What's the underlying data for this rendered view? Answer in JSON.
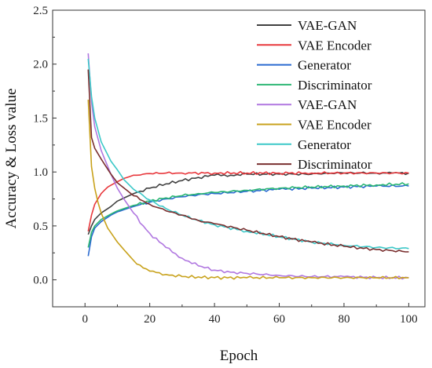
{
  "chart_data": {
    "type": "line",
    "title": "",
    "xlabel": "Epoch",
    "ylabel": "Accuracy & Loss value",
    "xlim": [
      -10,
      105
    ],
    "ylim": [
      -0.25,
      2.5
    ],
    "x_ticks": [
      0,
      20,
      40,
      60,
      80,
      100
    ],
    "y_ticks": [
      0.0,
      0.5,
      1.0,
      1.5,
      2.0,
      2.5
    ],
    "grid": false,
    "legend_position": "top-right",
    "series": [
      {
        "name": "VAE-GAN",
        "color": "#404040",
        "x": [
          1,
          2,
          3,
          5,
          8,
          10,
          15,
          20,
          25,
          30,
          35,
          40,
          45,
          50,
          55,
          60,
          65,
          70,
          75,
          80,
          85,
          90,
          95,
          100
        ],
        "y": [
          0.42,
          0.5,
          0.56,
          0.62,
          0.68,
          0.73,
          0.8,
          0.85,
          0.89,
          0.92,
          0.95,
          0.97,
          0.97,
          0.98,
          0.98,
          0.98,
          0.98,
          0.98,
          0.99,
          0.99,
          0.99,
          0.99,
          0.99,
          0.99
        ]
      },
      {
        "name": "VAE Encoder",
        "color": "#e8383d",
        "x": [
          1,
          2,
          3,
          5,
          7,
          10,
          12,
          15,
          18,
          20,
          25,
          30,
          40,
          50,
          60,
          70,
          80,
          90,
          100
        ],
        "y": [
          0.45,
          0.6,
          0.7,
          0.8,
          0.86,
          0.91,
          0.94,
          0.97,
          0.98,
          0.985,
          0.99,
          0.99,
          0.99,
          0.99,
          0.99,
          0.99,
          0.99,
          0.99,
          0.99
        ]
      },
      {
        "name": "Generator",
        "color": "#2a6ad0",
        "x": [
          1,
          2,
          3,
          5,
          8,
          10,
          15,
          20,
          25,
          30,
          35,
          40,
          50,
          60,
          70,
          80,
          90,
          100
        ],
        "y": [
          0.22,
          0.4,
          0.48,
          0.54,
          0.6,
          0.63,
          0.68,
          0.72,
          0.75,
          0.77,
          0.79,
          0.8,
          0.82,
          0.84,
          0.85,
          0.86,
          0.87,
          0.87
        ]
      },
      {
        "name": "Discriminator",
        "color": "#2bb673",
        "x": [
          1,
          2,
          3,
          5,
          8,
          10,
          15,
          20,
          25,
          30,
          35,
          40,
          50,
          60,
          70,
          80,
          90,
          100
        ],
        "y": [
          0.3,
          0.44,
          0.5,
          0.56,
          0.61,
          0.64,
          0.69,
          0.73,
          0.76,
          0.78,
          0.8,
          0.81,
          0.83,
          0.85,
          0.86,
          0.87,
          0.88,
          0.89
        ]
      },
      {
        "name": "VAE-GAN",
        "color": "#b077e0",
        "x": [
          1,
          2,
          3,
          5,
          8,
          10,
          12,
          15,
          18,
          20,
          25,
          30,
          35,
          40,
          45,
          50,
          60,
          70,
          80,
          90,
          100
        ],
        "y": [
          2.1,
          1.65,
          1.42,
          1.2,
          0.98,
          0.85,
          0.75,
          0.62,
          0.5,
          0.43,
          0.3,
          0.2,
          0.13,
          0.09,
          0.07,
          0.06,
          0.04,
          0.03,
          0.03,
          0.02,
          0.02
        ]
      },
      {
        "name": "VAE Encoder",
        "color": "#c8a21c",
        "x": [
          1,
          2,
          3,
          4,
          5,
          7,
          10,
          12,
          15,
          18,
          20,
          25,
          30,
          40,
          50,
          60,
          70,
          80,
          90,
          100
        ],
        "y": [
          1.67,
          1.05,
          0.85,
          0.72,
          0.62,
          0.48,
          0.35,
          0.28,
          0.18,
          0.11,
          0.08,
          0.05,
          0.03,
          0.02,
          0.02,
          0.02,
          0.02,
          0.02,
          0.02,
          0.02
        ]
      },
      {
        "name": "Generator",
        "color": "#3cc8c8",
        "x": [
          1,
          2,
          3,
          5,
          8,
          10,
          12,
          15,
          20,
          25,
          30,
          35,
          40,
          50,
          60,
          70,
          80,
          90,
          100
        ],
        "y": [
          2.05,
          1.7,
          1.5,
          1.28,
          1.1,
          1.02,
          0.93,
          0.84,
          0.74,
          0.66,
          0.6,
          0.55,
          0.51,
          0.45,
          0.4,
          0.35,
          0.32,
          0.3,
          0.29
        ]
      },
      {
        "name": "Discriminator",
        "color": "#7a2f2f",
        "x": [
          1,
          2,
          3,
          5,
          8,
          10,
          15,
          20,
          25,
          30,
          35,
          40,
          50,
          60,
          70,
          80,
          90,
          100
        ],
        "y": [
          1.95,
          1.32,
          1.22,
          1.12,
          0.98,
          0.9,
          0.78,
          0.7,
          0.64,
          0.6,
          0.55,
          0.52,
          0.46,
          0.4,
          0.35,
          0.31,
          0.28,
          0.26
        ]
      }
    ]
  }
}
